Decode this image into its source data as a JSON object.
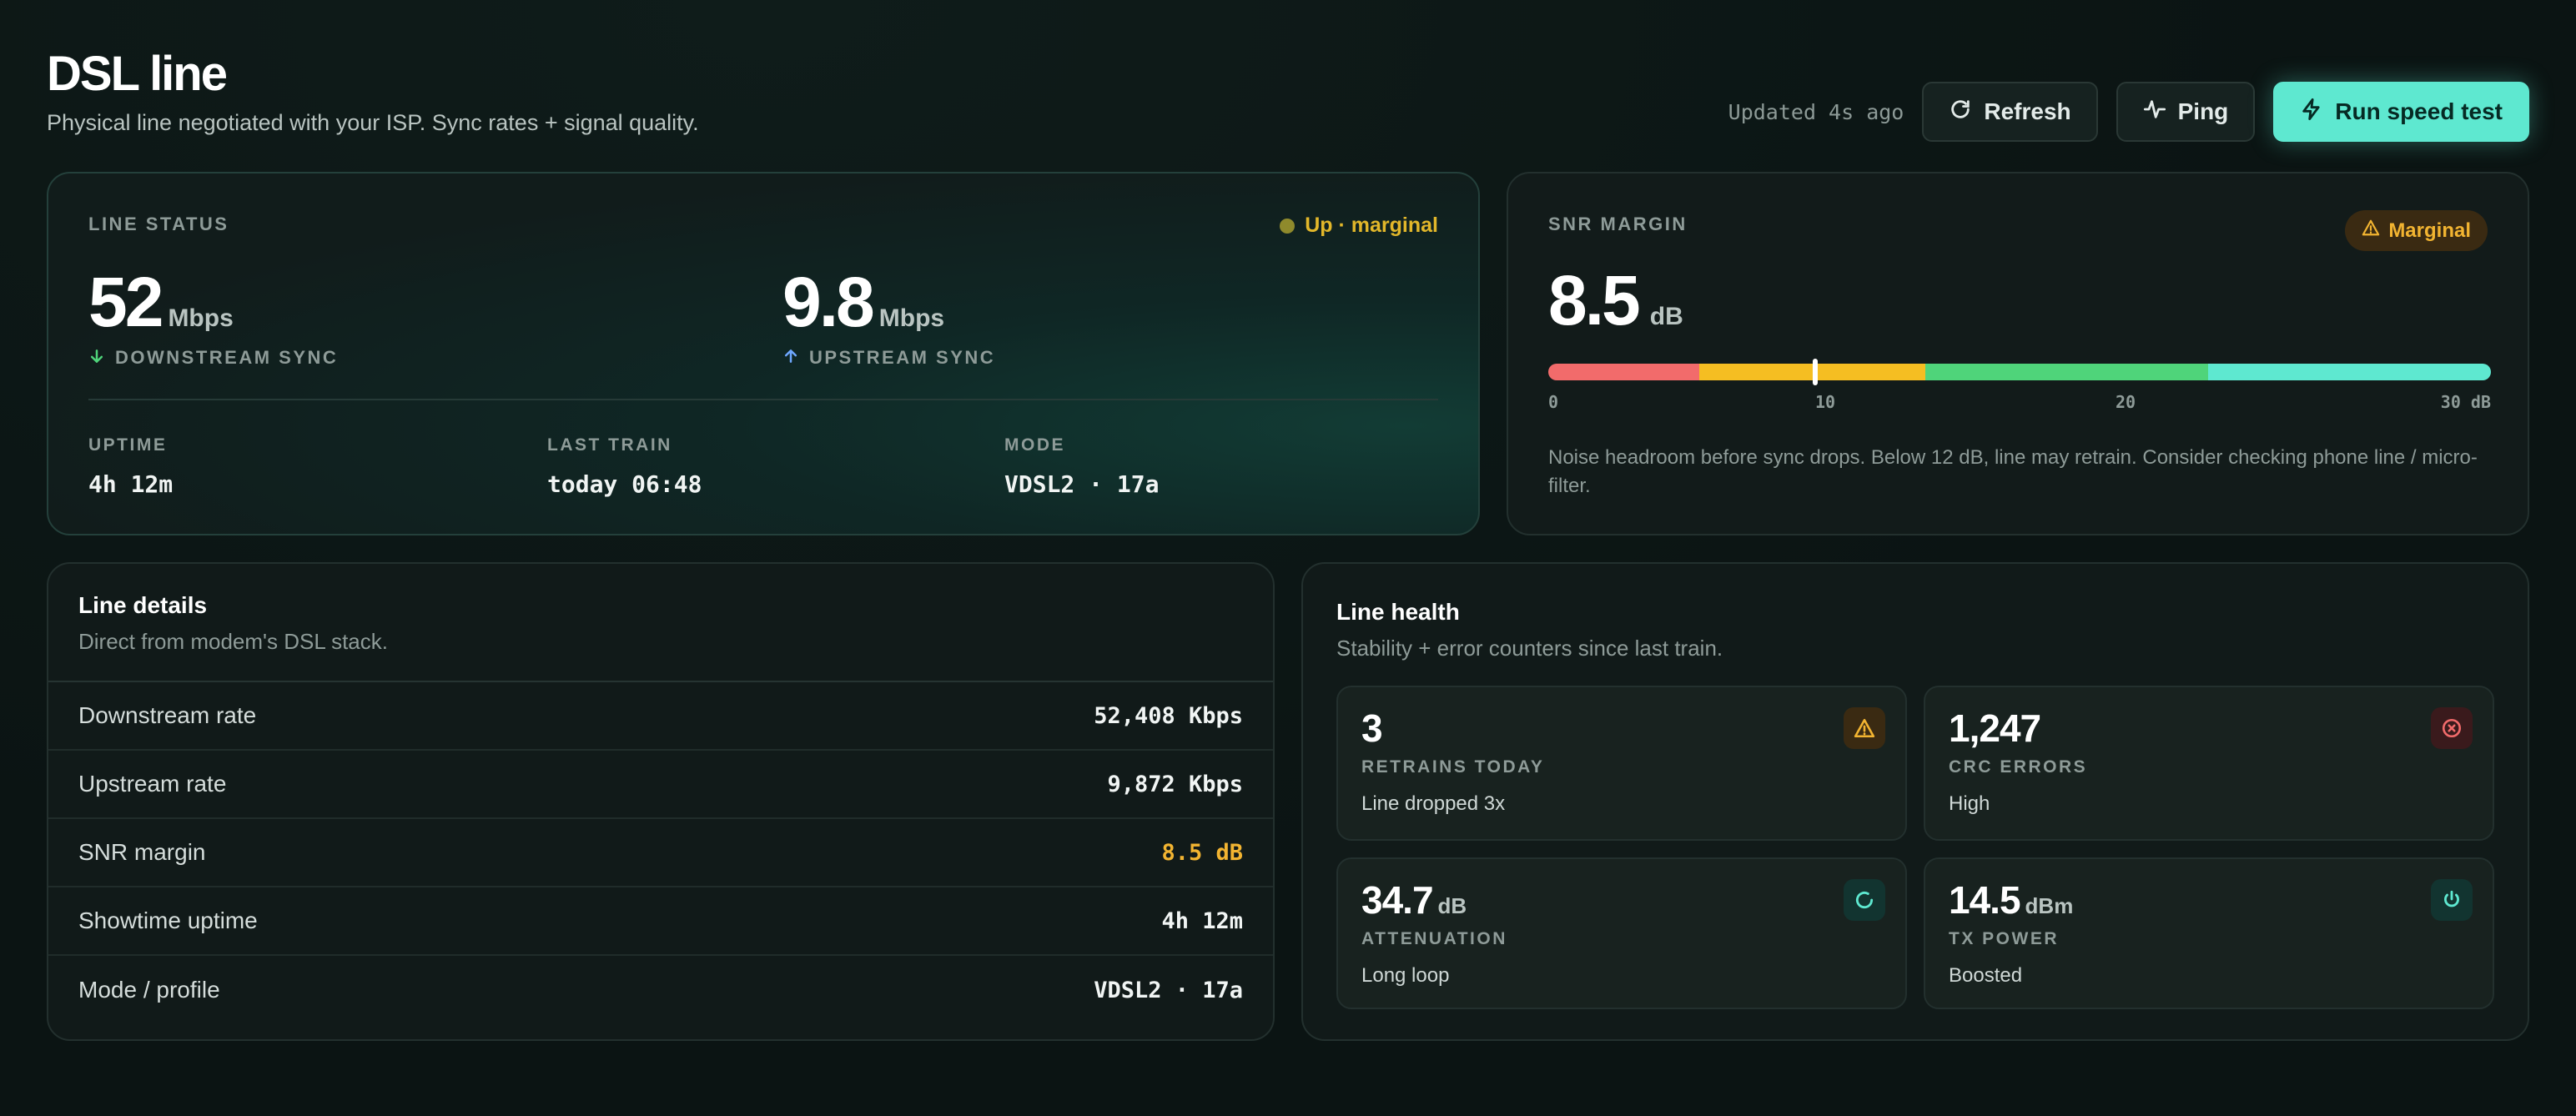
{
  "header": {
    "title": "DSL line",
    "subtitle": "Physical line negotiated with your ISP. Sync rates + signal quality.",
    "updated": "Updated 4s ago",
    "refresh_label": "Refresh",
    "ping_label": "Ping",
    "speedtest_label": "Run speed test"
  },
  "line_status": {
    "label": "LINE STATUS",
    "badge": "Up · marginal",
    "downstream": {
      "value": "52",
      "unit": "Mbps",
      "label": "DOWNSTREAM SYNC"
    },
    "upstream": {
      "value": "9.8",
      "unit": "Mbps",
      "label": "UPSTREAM SYNC"
    },
    "uptime": {
      "label": "UPTIME",
      "value": "4h 12m"
    },
    "last_train": {
      "label": "LAST TRAIN",
      "value": "today 06:48"
    },
    "mode": {
      "label": "MODE",
      "value": "VDSL2 · 17a"
    }
  },
  "snr": {
    "label": "SNR MARGIN",
    "badge": "Marginal",
    "value": "8.5",
    "unit": "dB",
    "current_db": 8.5,
    "scale_max_db": 30,
    "ticks": [
      "0",
      "10",
      "20",
      "30 dB"
    ],
    "note": "Noise headroom before sync drops. Below 12 dB, line may retrain. Consider checking phone line / micro-filter."
  },
  "line_details": {
    "title": "Line details",
    "subtitle": "Direct from modem's DSL stack.",
    "rows": [
      {
        "key": "Downstream rate",
        "value": "52,408 Kbps"
      },
      {
        "key": "Upstream rate",
        "value": "9,872 Kbps"
      },
      {
        "key": "SNR margin",
        "value": "8.5 dB"
      },
      {
        "key": "Showtime uptime",
        "value": "4h 12m"
      },
      {
        "key": "Mode / profile",
        "value": "VDSL2 · 17a"
      }
    ]
  },
  "line_health": {
    "title": "Line health",
    "subtitle": "Stability + error counters since last train.",
    "tiles": [
      {
        "value": "3",
        "unit": "",
        "label": "RETRAINS TODAY",
        "desc": "Line dropped 3x",
        "icon": "warning-icon"
      },
      {
        "value": "1,247",
        "unit": "",
        "label": "CRC ERRORS",
        "desc": "High",
        "icon": "error-circle-icon"
      },
      {
        "value": "34.7",
        "unit": "dB",
        "label": "ATTENUATION",
        "desc": "Long loop",
        "icon": "refresh-circle-icon"
      },
      {
        "value": "14.5",
        "unit": "dBm",
        "label": "TX POWER",
        "desc": "Boosted",
        "icon": "power-icon"
      }
    ]
  },
  "colors": {
    "accent": "#5ee8d0",
    "warning": "#f2b431",
    "danger": "#f26b6b",
    "good": "#4fd47a",
    "downstream_arrow": "#4fd47a",
    "upstream_arrow": "#6fa8ff"
  }
}
